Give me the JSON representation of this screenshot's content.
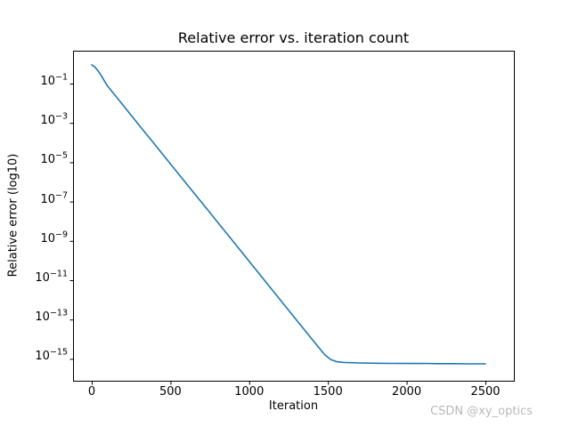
{
  "figure": {
    "background": "#ffffff",
    "watermark": {
      "text": "CSDN @xy_optics",
      "color": "#b9b9b9"
    }
  },
  "chart_data": {
    "type": "line",
    "title": "Relative error vs. iteration count",
    "xlabel": "Iteration",
    "ylabel": "Relative error (log10)",
    "x_ticks": [
      0,
      500,
      1000,
      1500,
      2000,
      2500
    ],
    "y_scale": "log",
    "y_tick_exponents": [
      -1,
      -3,
      -5,
      -7,
      -9,
      -11,
      -13,
      -15
    ],
    "xlim": [
      -119,
      2681
    ],
    "ylim_log10": [
      -16.1,
      0.67
    ],
    "grid": false,
    "legend": false,
    "line_color": "#1f77b4",
    "axis_color": "#000000",
    "series": [
      {
        "name": "relative_error",
        "points": [
          [
            0,
            0.9
          ],
          [
            20,
            0.7
          ],
          [
            40,
            0.45
          ],
          [
            60,
            0.26
          ],
          [
            80,
            0.14
          ],
          [
            100,
            0.076
          ],
          [
            200,
            0.0078
          ],
          [
            300,
            0.00079
          ],
          [
            400,
            8.1e-05
          ],
          [
            500,
            8.3e-06
          ],
          [
            600,
            8.4e-07
          ],
          [
            700,
            8.6e-08
          ],
          [
            800,
            8.8e-09
          ],
          [
            900,
            9e-10
          ],
          [
            1000,
            9.1e-11
          ],
          [
            1100,
            9.3e-12
          ],
          [
            1200,
            9.4e-13
          ],
          [
            1300,
            9.6e-14
          ],
          [
            1400,
            9.8e-15
          ],
          [
            1440,
            3.9e-15
          ],
          [
            1480,
            1.6e-15
          ],
          [
            1520,
            9e-16
          ],
          [
            1560,
            7.1e-16
          ],
          [
            1600,
            6.6e-16
          ],
          [
            1700,
            6.2e-16
          ],
          [
            1800,
            6e-16
          ],
          [
            1900,
            5.9e-16
          ],
          [
            2000,
            5.8e-16
          ],
          [
            2100,
            5.9e-16
          ],
          [
            2200,
            5.7e-16
          ],
          [
            2300,
            5.7e-16
          ],
          [
            2400,
            5.6e-16
          ],
          [
            2500,
            5.6e-16
          ]
        ]
      }
    ]
  }
}
